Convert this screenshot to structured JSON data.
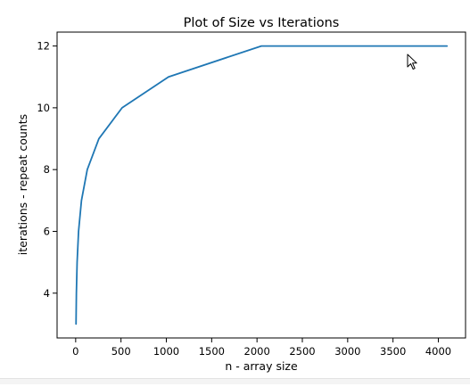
{
  "chart_data": {
    "type": "line",
    "title": "Plot of Size vs Iterations",
    "xlabel": "n - array size",
    "ylabel": "iterations - repeat counts",
    "xlim": [
      -205,
      4300
    ],
    "ylim": [
      2.55,
      12.45
    ],
    "x_ticks": [
      0,
      500,
      1000,
      1500,
      2000,
      2500,
      3000,
      3500,
      4000
    ],
    "y_ticks": [
      4,
      6,
      8,
      10,
      12
    ],
    "grid": false,
    "series": [
      {
        "color": "#1f77b4",
        "x": [
          4,
          8,
          16,
          32,
          64,
          128,
          256,
          512,
          1024,
          2048,
          4096
        ],
        "y": [
          3,
          4,
          5,
          6,
          7,
          8,
          9,
          10,
          11,
          12,
          12
        ]
      }
    ]
  }
}
